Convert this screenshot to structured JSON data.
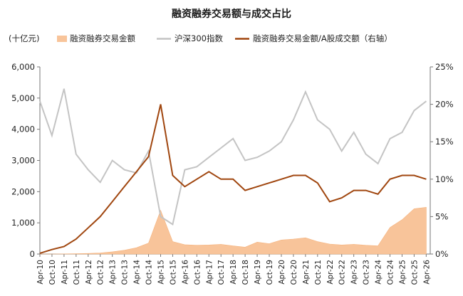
{
  "chart_data": {
    "type": "area+line",
    "title": "融资融券交易额与成交占比",
    "unit_left": "(十亿元)",
    "legend": [
      {
        "name": "融资融券交易金额",
        "color": "#f8c49a",
        "kind": "area"
      },
      {
        "name": "沪深300指数",
        "color": "#c4c4c4",
        "kind": "line"
      },
      {
        "name": "融资融券交易金额/A股成交额（右轴）",
        "color": "#a0460f",
        "kind": "line"
      }
    ],
    "y_left": {
      "min": 0,
      "max": 6000,
      "ticks": [
        "0",
        "1,000",
        "2,000",
        "3,000",
        "4,000",
        "5,000",
        "6,000"
      ]
    },
    "y_right": {
      "min": 0,
      "max": 25,
      "ticks": [
        "0%",
        "5%",
        "10%",
        "15%",
        "20%",
        "25%"
      ]
    },
    "x_range": [
      "2010-04",
      "2026-06"
    ],
    "x_ticks": [
      "Apr-10",
      "Oct-10",
      "Apr-11",
      "Oct-11",
      "Apr-12",
      "Oct-12",
      "Apr-13",
      "Oct-13",
      "Apr-14",
      "Oct-14",
      "Apr-15",
      "Oct-15",
      "Apr-16",
      "Oct-16",
      "Apr-17",
      "Oct-17",
      "Apr-18",
      "Oct-18",
      "Apr-19",
      "Oct-19",
      "Apr-20",
      "Oct-20",
      "Apr-21",
      "Oct-21",
      "Apr-22",
      "Oct-22",
      "Apr-23",
      "Oct-23",
      "Apr-24",
      "Oct-24",
      "Apr-25",
      "Oct-25",
      "Apr-26"
    ],
    "x": [
      "2010-04",
      "2010-10",
      "2011-04",
      "2011-10",
      "2012-04",
      "2012-10",
      "2013-04",
      "2013-10",
      "2014-04",
      "2014-10",
      "2015-04",
      "2015-10",
      "2016-04",
      "2016-10",
      "2017-04",
      "2017-10",
      "2018-04",
      "2018-10",
      "2019-04",
      "2019-10",
      "2020-04",
      "2020-10",
      "2021-04",
      "2021-10",
      "2022-04",
      "2022-10",
      "2023-04",
      "2023-10",
      "2024-04",
      "2024-10",
      "2025-04",
      "2025-10",
      "2026-04"
    ],
    "series": [
      {
        "name": "融资融券交易金额",
        "axis": "left",
        "values": [
          0,
          0,
          5,
          10,
          18,
          35,
          70,
          120,
          200,
          350,
          1400,
          400,
          300,
          280,
          290,
          310,
          260,
          220,
          380,
          330,
          450,
          480,
          520,
          400,
          320,
          290,
          310,
          280,
          260,
          850,
          1100,
          1450,
          1500
        ]
      },
      {
        "name": "沪深300指数",
        "axis": "left",
        "values": [
          4900,
          3800,
          5300,
          3200,
          2700,
          2300,
          3000,
          2700,
          2600,
          3300,
          1200,
          950,
          2700,
          2800,
          3100,
          3400,
          3700,
          3000,
          3100,
          3300,
          3600,
          4300,
          5200,
          4300,
          4000,
          3300,
          3900,
          3200,
          2900,
          3700,
          3900,
          4600,
          4900
        ]
      },
      {
        "name": "融资融券交易金额/A股成交额（右轴）",
        "axis": "right",
        "values": [
          0.1,
          0.6,
          1.0,
          2.0,
          3.5,
          5.0,
          7.0,
          9.0,
          11.0,
          13.0,
          20.0,
          10.5,
          9.0,
          10.0,
          11.0,
          10.0,
          10.0,
          8.5,
          9.0,
          9.5,
          10.0,
          10.5,
          10.5,
          9.5,
          7.0,
          7.5,
          8.5,
          8.5,
          8.0,
          10.0,
          10.5,
          10.5,
          10.0
        ]
      }
    ]
  }
}
